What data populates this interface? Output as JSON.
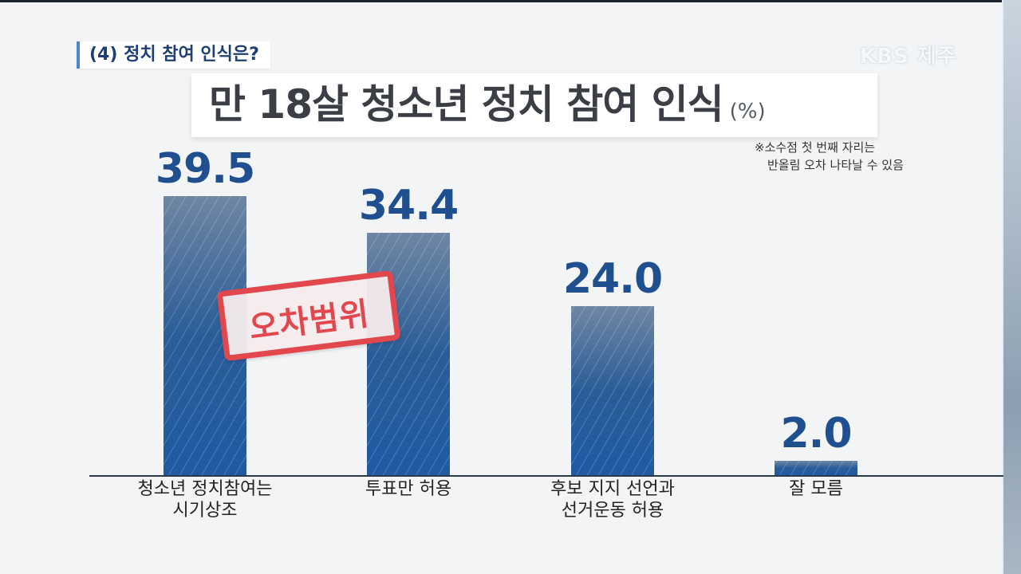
{
  "broadcaster": {
    "logo_text": "KBS 제주"
  },
  "header": {
    "subtitle": "(4) 정치 참여 인식은?",
    "title": "만 18살 청소년 정치 참여 인식",
    "unit": "(%)"
  },
  "note": {
    "line1": "※소수점 첫 번째 자리는",
    "line2": "반올림 오차 나타날 수 있음"
  },
  "stamp": {
    "text": "오차범위",
    "color": "#e2474d"
  },
  "chart_data": {
    "type": "bar",
    "categories": [
      [
        "청소년 정치참여는",
        "시기상조"
      ],
      [
        "투표만 허용"
      ],
      [
        "후보 지지 선언과",
        "선거운동 허용"
      ],
      [
        "잘 모름"
      ]
    ],
    "values": [
      39.5,
      34.4,
      24.0,
      2.0
    ],
    "value_labels": [
      "39.5",
      "34.4",
      "24.0",
      "2.0"
    ],
    "title": "만 18살 청소년 정치 참여 인식",
    "unit": "(%)",
    "ylim": [
      0,
      42
    ],
    "grid": false,
    "legend": "none",
    "bar_color": "#1f5aa3",
    "value_color": "#1f4f8e"
  }
}
